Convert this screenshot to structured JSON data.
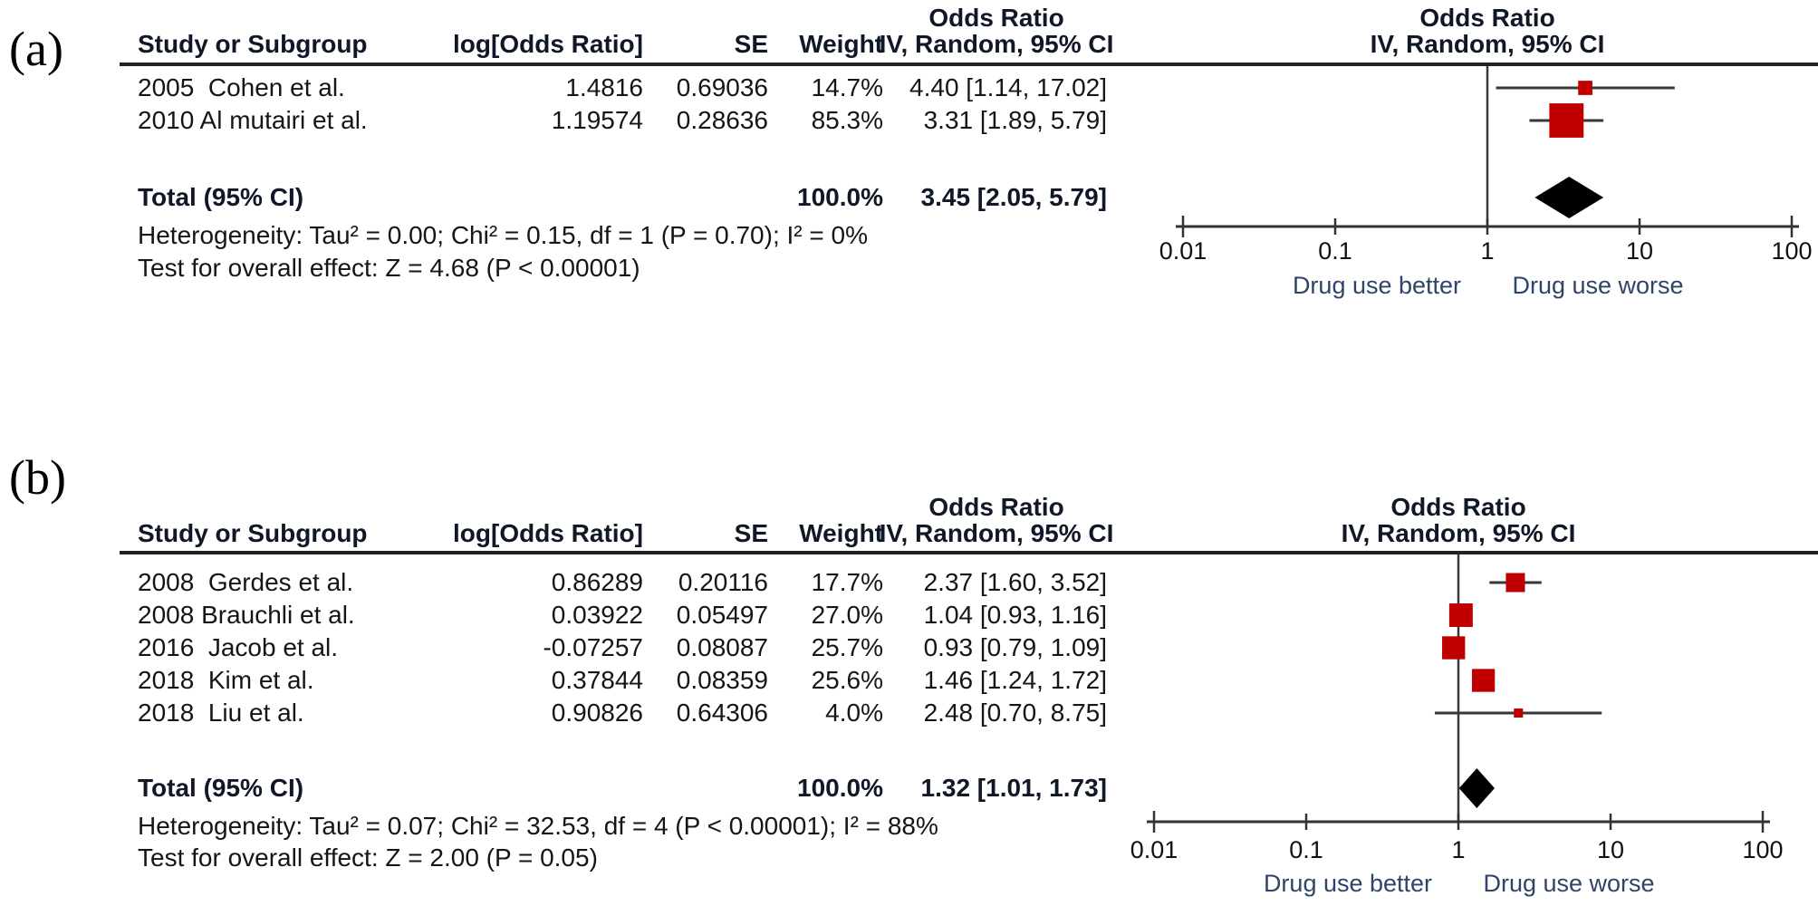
{
  "figure": {
    "columns": {
      "study": "Study or Subgroup",
      "log_or": "log[Odds Ratio]",
      "se": "SE",
      "weight": "Weight",
      "ci": "IV, Random, 95% CI",
      "effect": "Odds Ratio"
    },
    "colors": {
      "marker": "#c00000",
      "diamond": "#000000",
      "line": "#3a3a3a",
      "axis_label": "#2e4468"
    }
  },
  "chart_data": [
    {
      "type": "forest",
      "panel_label": "(a)",
      "effect_measure": "Odds Ratio",
      "method": "IV, Random, 95% CI",
      "studies": [
        {
          "study": "2005  Cohen et al.",
          "log_or": "1.4816",
          "se": "0.69036",
          "weight": "14.7%",
          "weight_pct": 14.7,
          "ci_text": "4.40 [1.14, 17.02]",
          "or": 4.4,
          "low": 1.14,
          "high": 17.02
        },
        {
          "study": "2010 Al mutairi et al.",
          "log_or": "1.19574",
          "se": "0.28636",
          "weight": "85.3%",
          "weight_pct": 85.3,
          "ci_text": "3.31 [1.89, 5.79]",
          "or": 3.31,
          "low": 1.89,
          "high": 5.79
        }
      ],
      "total": {
        "label": "Total (95% CI)",
        "weight": "100.0%",
        "ci_text": "3.45 [2.05, 5.79]",
        "or": 3.45,
        "low": 2.05,
        "high": 5.79
      },
      "heterogeneity": "Heterogeneity: Tau² = 0.00; Chi² = 0.15, df = 1 (P = 0.70); I² = 0%",
      "overall_effect": "Test for overall effect: Z = 4.68 (P < 0.00001)",
      "axis": {
        "scale": "log",
        "ticks": [
          0.01,
          0.1,
          1,
          10,
          100
        ],
        "tick_labels": [
          "0.01",
          "0.1",
          "1",
          "10",
          "100"
        ],
        "left_label": "Drug use better",
        "right_label": "Drug use worse"
      }
    },
    {
      "type": "forest",
      "panel_label": "(b)",
      "effect_measure": "Odds Ratio",
      "method": "IV, Random, 95% CI",
      "studies": [
        {
          "study": "2008  Gerdes et al.",
          "log_or": "0.86289",
          "se": "0.20116",
          "weight": "17.7%",
          "weight_pct": 17.7,
          "ci_text": "2.37 [1.60, 3.52]",
          "or": 2.37,
          "low": 1.6,
          "high": 3.52
        },
        {
          "study": "2008 Brauchli et al.",
          "log_or": "0.03922",
          "se": "0.05497",
          "weight": "27.0%",
          "weight_pct": 27.0,
          "ci_text": "1.04 [0.93, 1.16]",
          "or": 1.04,
          "low": 0.93,
          "high": 1.16
        },
        {
          "study": "2016  Jacob et al.",
          "log_or": "-0.07257",
          "se": "0.08087",
          "weight": "25.7%",
          "weight_pct": 25.7,
          "ci_text": "0.93 [0.79, 1.09]",
          "or": 0.93,
          "low": 0.79,
          "high": 1.09
        },
        {
          "study": "2018  Kim et al.",
          "log_or": "0.37844",
          "se": "0.08359",
          "weight": "25.6%",
          "weight_pct": 25.6,
          "ci_text": "1.46 [1.24, 1.72]",
          "or": 1.46,
          "low": 1.24,
          "high": 1.72
        },
        {
          "study": "2018  Liu et al.",
          "log_or": "0.90826",
          "se": "0.64306",
          "weight": "4.0%",
          "weight_pct": 4.0,
          "ci_text": "2.48 [0.70, 8.75]",
          "or": 2.48,
          "low": 0.7,
          "high": 8.75
        }
      ],
      "total": {
        "label": "Total (95% CI)",
        "weight": "100.0%",
        "ci_text": "1.32 [1.01, 1.73]",
        "or": 1.32,
        "low": 1.01,
        "high": 1.73
      },
      "heterogeneity": "Heterogeneity: Tau² = 0.07; Chi² = 32.53, df = 4 (P < 0.00001); I² = 88%",
      "overall_effect": "Test for overall effect: Z = 2.00 (P = 0.05)",
      "axis": {
        "scale": "log",
        "ticks": [
          0.01,
          0.1,
          1,
          10,
          100
        ],
        "tick_labels": [
          "0.01",
          "0.1",
          "1",
          "10",
          "100"
        ],
        "left_label": "Drug use better",
        "right_label": "Drug use worse"
      }
    }
  ]
}
